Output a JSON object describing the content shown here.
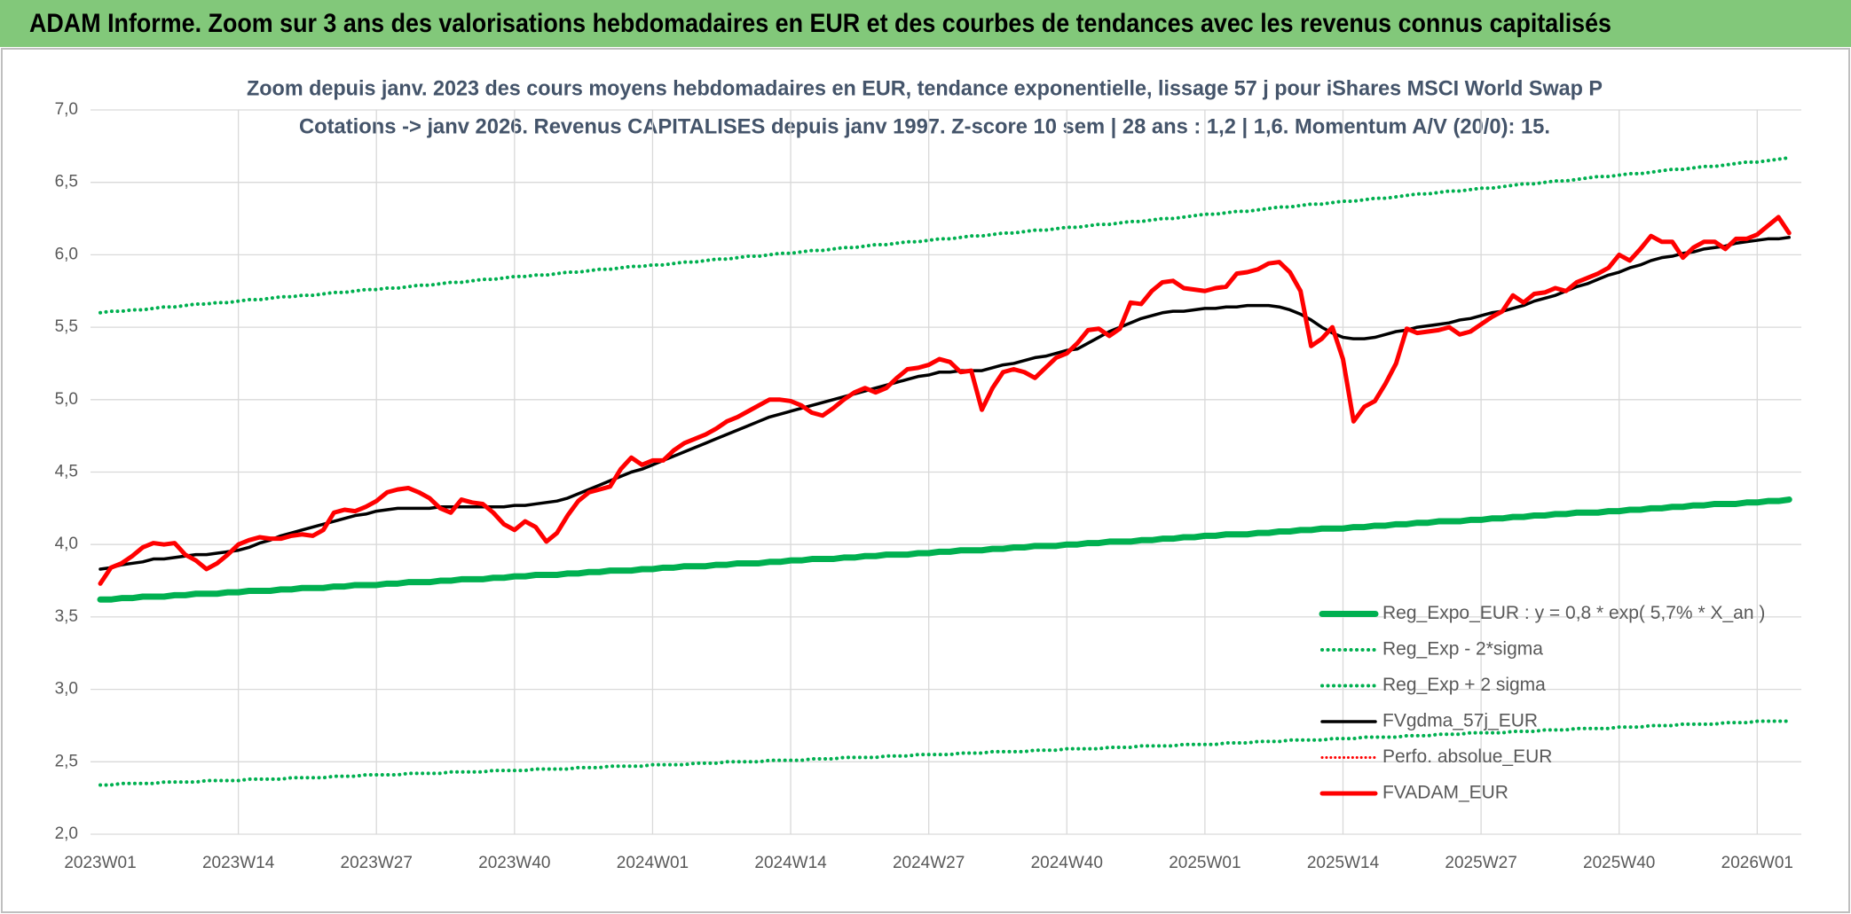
{
  "header": {
    "title": "ADAM Informe. Zoom sur 3 ans des valorisations hebdomadaires en EUR et des courbes de tendances avec les revenus connus capitalisés"
  },
  "chart_data": {
    "type": "line",
    "title": "Zoom depuis janv. 2023 des cours moyens hebdomadaires en EUR, tendance exponentielle, lissage 57 j pour iShares MSCI World Swap P",
    "subtitle": "Cotations -> janv 2026. Revenus CAPITALISES depuis janv 1997. Z-score 10 sem | 28 ans : 1,2 | 1,6. Momentum A/V (20/0): 15.",
    "categories": [
      "2023W01",
      null,
      null,
      null,
      null,
      null,
      null,
      null,
      null,
      null,
      null,
      null,
      null,
      "2023W14",
      null,
      null,
      null,
      null,
      null,
      null,
      null,
      null,
      null,
      null,
      null,
      null,
      "2023W27",
      null,
      null,
      null,
      null,
      null,
      null,
      null,
      null,
      null,
      null,
      null,
      null,
      "2023W40",
      null,
      null,
      null,
      null,
      null,
      null,
      null,
      null,
      null,
      null,
      null,
      null,
      "2024W01",
      null,
      null,
      null,
      null,
      null,
      null,
      null,
      null,
      null,
      null,
      null,
      null,
      "2024W14",
      null,
      null,
      null,
      null,
      null,
      null,
      null,
      null,
      null,
      null,
      null,
      null,
      "2024W27",
      null,
      null,
      null,
      null,
      null,
      null,
      null,
      null,
      null,
      null,
      null,
      null,
      "2024W40",
      null,
      null,
      null,
      null,
      null,
      null,
      null,
      null,
      null,
      null,
      null,
      null,
      "2025W01",
      null,
      null,
      null,
      null,
      null,
      null,
      null,
      null,
      null,
      null,
      null,
      null,
      "2025W14",
      null,
      null,
      null,
      null,
      null,
      null,
      null,
      null,
      null,
      null,
      null,
      null,
      "2025W27",
      null,
      null,
      null,
      null,
      null,
      null,
      null,
      null,
      null,
      null,
      null,
      null,
      "2025W40",
      null,
      null,
      null,
      null,
      null,
      null,
      null,
      null,
      null,
      null,
      null,
      null,
      "2026W01",
      null,
      null,
      null
    ],
    "ylim": [
      2,
      7
    ],
    "yticks": [
      {
        "value": 2,
        "label": "2,0"
      },
      {
        "value": 2.5,
        "label": "2,5"
      },
      {
        "value": 3,
        "label": "3,0"
      },
      {
        "value": 3.5,
        "label": "3,5"
      },
      {
        "value": 4,
        "label": "4,0"
      },
      {
        "value": 4.5,
        "label": "4,5"
      },
      {
        "value": 5,
        "label": "5,0"
      },
      {
        "value": 5.5,
        "label": "5,5"
      },
      {
        "value": 6,
        "label": "6,0"
      },
      {
        "value": 6.5,
        "label": "6,5"
      },
      {
        "value": 7,
        "label": "7,0"
      }
    ],
    "grid": true,
    "legend": "lower right",
    "series": [
      {
        "name": "Reg_Expo_EUR : y = 0,8 * exp( 5,7% * X_an )",
        "color": "#00b050",
        "dash": "solid",
        "width": 7,
        "values": [
          3.62,
          3.62,
          3.63,
          3.63,
          3.64,
          3.64,
          3.64,
          3.65,
          3.65,
          3.66,
          3.66,
          3.66,
          3.67,
          3.67,
          3.68,
          3.68,
          3.68,
          3.69,
          3.69,
          3.7,
          3.7,
          3.7,
          3.71,
          3.71,
          3.72,
          3.72,
          3.72,
          3.73,
          3.73,
          3.74,
          3.74,
          3.74,
          3.75,
          3.75,
          3.76,
          3.76,
          3.76,
          3.77,
          3.77,
          3.78,
          3.78,
          3.79,
          3.79,
          3.79,
          3.8,
          3.8,
          3.81,
          3.81,
          3.82,
          3.82,
          3.82,
          3.83,
          3.83,
          3.84,
          3.84,
          3.85,
          3.85,
          3.85,
          3.86,
          3.86,
          3.87,
          3.87,
          3.87,
          3.88,
          3.88,
          3.89,
          3.89,
          3.9,
          3.9,
          3.9,
          3.91,
          3.91,
          3.92,
          3.92,
          3.93,
          3.93,
          3.93,
          3.94,
          3.94,
          3.95,
          3.95,
          3.96,
          3.96,
          3.96,
          3.97,
          3.97,
          3.98,
          3.98,
          3.99,
          3.99,
          3.99,
          4.0,
          4.0,
          4.01,
          4.01,
          4.02,
          4.02,
          4.02,
          4.03,
          4.03,
          4.04,
          4.04,
          4.05,
          4.05,
          4.06,
          4.06,
          4.07,
          4.07,
          4.07,
          4.08,
          4.08,
          4.09,
          4.09,
          4.1,
          4.1,
          4.11,
          4.11,
          4.11,
          4.12,
          4.12,
          4.13,
          4.13,
          4.14,
          4.14,
          4.15,
          4.15,
          4.16,
          4.16,
          4.16,
          4.17,
          4.17,
          4.18,
          4.18,
          4.19,
          4.19,
          4.2,
          4.2,
          4.21,
          4.21,
          4.22,
          4.22,
          4.22,
          4.23,
          4.23,
          4.24,
          4.24,
          4.25,
          4.25,
          4.26,
          4.26,
          4.27,
          4.27,
          4.28,
          4.28,
          4.28,
          4.29,
          4.29,
          4.3,
          4.3,
          4.31
        ]
      },
      {
        "name": "Reg_Exp - 2*sigma",
        "color": "#00b050",
        "dash": "dotted",
        "width": 4,
        "values": [
          2.34,
          2.34,
          2.35,
          2.35,
          2.35,
          2.35,
          2.36,
          2.36,
          2.36,
          2.36,
          2.37,
          2.37,
          2.37,
          2.37,
          2.38,
          2.38,
          2.38,
          2.38,
          2.39,
          2.39,
          2.39,
          2.39,
          2.4,
          2.4,
          2.4,
          2.41,
          2.41,
          2.41,
          2.41,
          2.42,
          2.42,
          2.42,
          2.42,
          2.43,
          2.43,
          2.43,
          2.43,
          2.44,
          2.44,
          2.44,
          2.44,
          2.45,
          2.45,
          2.45,
          2.45,
          2.46,
          2.46,
          2.46,
          2.47,
          2.47,
          2.47,
          2.47,
          2.48,
          2.48,
          2.48,
          2.48,
          2.49,
          2.49,
          2.49,
          2.5,
          2.5,
          2.5,
          2.5,
          2.51,
          2.51,
          2.51,
          2.51,
          2.52,
          2.52,
          2.52,
          2.53,
          2.53,
          2.53,
          2.53,
          2.54,
          2.54,
          2.54,
          2.55,
          2.55,
          2.55,
          2.55,
          2.56,
          2.56,
          2.56,
          2.57,
          2.57,
          2.57,
          2.57,
          2.58,
          2.58,
          2.58,
          2.59,
          2.59,
          2.59,
          2.59,
          2.6,
          2.6,
          2.6,
          2.61,
          2.61,
          2.61,
          2.61,
          2.62,
          2.62,
          2.62,
          2.62,
          2.63,
          2.63,
          2.63,
          2.64,
          2.64,
          2.64,
          2.65,
          2.65,
          2.65,
          2.65,
          2.66,
          2.66,
          2.66,
          2.67,
          2.67,
          2.67,
          2.67,
          2.68,
          2.68,
          2.68,
          2.69,
          2.69,
          2.69,
          2.7,
          2.7,
          2.7,
          2.7,
          2.71,
          2.71,
          2.71,
          2.72,
          2.72,
          2.72,
          2.73,
          2.73,
          2.73,
          2.73,
          2.74,
          2.74,
          2.74,
          2.75,
          2.75,
          2.75,
          2.76,
          2.76,
          2.76,
          2.76,
          2.77,
          2.77,
          2.77,
          2.78,
          2.78,
          2.78,
          2.78
        ]
      },
      {
        "name": "Reg_Exp + 2 sigma",
        "color": "#00b050",
        "dash": "dotted",
        "width": 4,
        "values": [
          5.6,
          5.61,
          5.61,
          5.62,
          5.62,
          5.63,
          5.64,
          5.64,
          5.65,
          5.66,
          5.66,
          5.67,
          5.67,
          5.68,
          5.69,
          5.69,
          5.7,
          5.71,
          5.71,
          5.72,
          5.72,
          5.73,
          5.74,
          5.74,
          5.75,
          5.76,
          5.76,
          5.77,
          5.77,
          5.78,
          5.79,
          5.79,
          5.8,
          5.81,
          5.81,
          5.82,
          5.83,
          5.83,
          5.84,
          5.85,
          5.85,
          5.86,
          5.86,
          5.87,
          5.88,
          5.88,
          5.89,
          5.9,
          5.9,
          5.91,
          5.92,
          5.92,
          5.93,
          5.93,
          5.94,
          5.95,
          5.95,
          5.96,
          5.97,
          5.97,
          5.98,
          5.99,
          5.99,
          6.0,
          6.01,
          6.01,
          6.02,
          6.03,
          6.03,
          6.04,
          6.05,
          6.05,
          6.06,
          6.07,
          6.07,
          6.08,
          6.09,
          6.09,
          6.1,
          6.11,
          6.11,
          6.12,
          6.13,
          6.13,
          6.14,
          6.15,
          6.15,
          6.16,
          6.17,
          6.17,
          6.18,
          6.19,
          6.19,
          6.2,
          6.21,
          6.21,
          6.22,
          6.23,
          6.23,
          6.24,
          6.25,
          6.25,
          6.26,
          6.27,
          6.28,
          6.28,
          6.29,
          6.3,
          6.3,
          6.31,
          6.32,
          6.33,
          6.33,
          6.34,
          6.35,
          6.35,
          6.36,
          6.37,
          6.37,
          6.38,
          6.39,
          6.39,
          6.4,
          6.41,
          6.42,
          6.42,
          6.43,
          6.44,
          6.44,
          6.45,
          6.46,
          6.46,
          6.47,
          6.48,
          6.49,
          6.49,
          6.5,
          6.51,
          6.51,
          6.52,
          6.53,
          6.54,
          6.54,
          6.55,
          6.56,
          6.56,
          6.57,
          6.58,
          6.59,
          6.59,
          6.6,
          6.61,
          6.61,
          6.62,
          6.63,
          6.64,
          6.64,
          6.65,
          6.66,
          6.67
        ]
      },
      {
        "name": "FVgdma_57j_EUR",
        "color": "#000000",
        "dash": "solid",
        "width": 3.5,
        "values": [
          3.83,
          3.84,
          3.86,
          3.87,
          3.88,
          3.9,
          3.9,
          3.91,
          3.92,
          3.93,
          3.93,
          3.94,
          3.95,
          3.96,
          3.98,
          4.01,
          4.03,
          4.06,
          4.08,
          4.1,
          4.12,
          4.14,
          4.16,
          4.18,
          4.2,
          4.21,
          4.23,
          4.24,
          4.25,
          4.25,
          4.25,
          4.25,
          4.26,
          4.26,
          4.26,
          4.26,
          4.26,
          4.26,
          4.26,
          4.27,
          4.27,
          4.28,
          4.29,
          4.3,
          4.32,
          4.35,
          4.38,
          4.41,
          4.44,
          4.47,
          4.5,
          4.52,
          4.55,
          4.58,
          4.61,
          4.64,
          4.67,
          4.7,
          4.73,
          4.76,
          4.79,
          4.82,
          4.85,
          4.88,
          4.9,
          4.92,
          4.94,
          4.96,
          4.98,
          5.0,
          5.02,
          5.04,
          5.06,
          5.08,
          5.1,
          5.12,
          5.14,
          5.16,
          5.17,
          5.19,
          5.19,
          5.2,
          5.2,
          5.2,
          5.22,
          5.24,
          5.25,
          5.27,
          5.29,
          5.3,
          5.32,
          5.34,
          5.35,
          5.39,
          5.43,
          5.47,
          5.5,
          5.53,
          5.56,
          5.58,
          5.6,
          5.61,
          5.61,
          5.62,
          5.63,
          5.63,
          5.64,
          5.64,
          5.65,
          5.65,
          5.65,
          5.64,
          5.62,
          5.59,
          5.55,
          5.5,
          5.46,
          5.43,
          5.42,
          5.42,
          5.43,
          5.45,
          5.47,
          5.48,
          5.5,
          5.51,
          5.52,
          5.53,
          5.55,
          5.56,
          5.58,
          5.6,
          5.61,
          5.63,
          5.65,
          5.68,
          5.7,
          5.72,
          5.75,
          5.78,
          5.8,
          5.83,
          5.86,
          5.88,
          5.91,
          5.93,
          5.96,
          5.98,
          5.99,
          6.01,
          6.02,
          6.04,
          6.05,
          6.06,
          6.08,
          6.09,
          6.1,
          6.11,
          6.11,
          6.12
        ]
      },
      {
        "name": "Perfo. absolue_EUR",
        "color": "#ff0000",
        "dash": "dotted",
        "width": 3,
        "values": [
          null,
          null,
          null,
          null,
          null,
          null,
          null,
          null,
          null,
          null,
          null,
          null,
          null,
          null,
          null,
          null,
          null,
          null,
          null,
          null,
          null,
          null,
          null,
          null,
          null,
          null,
          null,
          null,
          null,
          null,
          null,
          null,
          null,
          null,
          null,
          null,
          null,
          null,
          null,
          null,
          null,
          null,
          null,
          null,
          null,
          null,
          null,
          null,
          null,
          null,
          null,
          null,
          null,
          null,
          null,
          null,
          null,
          null,
          null,
          null,
          null,
          null,
          null,
          null,
          null,
          null,
          null,
          null,
          null,
          null,
          null,
          null,
          null,
          null,
          null,
          null,
          null,
          null,
          null,
          null,
          null,
          null,
          null,
          null,
          null,
          null,
          null,
          null,
          null,
          null,
          null,
          null,
          null,
          null,
          null,
          null,
          null,
          null,
          null,
          null,
          null,
          null,
          null,
          null,
          null,
          null,
          null,
          null,
          null,
          null,
          null,
          null,
          null,
          null,
          null,
          null,
          null,
          null,
          null,
          null,
          null,
          null,
          null,
          null,
          null,
          null,
          null,
          null,
          null,
          null,
          null,
          null,
          null,
          null,
          null,
          null,
          null,
          null,
          null,
          null,
          null,
          null,
          null,
          null,
          null,
          null,
          null,
          null,
          null,
          null,
          null,
          null,
          null,
          null,
          null,
          null,
          null,
          null,
          null,
          null
        ]
      },
      {
        "name": "FVADAM_EUR",
        "color": "#ff0000",
        "dash": "solid",
        "width": 5,
        "values": [
          3.73,
          3.84,
          3.87,
          3.92,
          3.98,
          4.01,
          4.0,
          4.01,
          3.93,
          3.89,
          3.83,
          3.87,
          3.93,
          4.0,
          4.03,
          4.05,
          4.04,
          4.04,
          4.06,
          4.07,
          4.06,
          4.1,
          4.22,
          4.24,
          4.23,
          4.26,
          4.3,
          4.36,
          4.38,
          4.39,
          4.36,
          4.32,
          4.25,
          4.22,
          4.31,
          4.29,
          4.28,
          4.22,
          4.14,
          4.1,
          4.16,
          4.12,
          4.02,
          4.08,
          4.2,
          4.3,
          4.36,
          4.38,
          4.4,
          4.52,
          4.6,
          4.55,
          4.58,
          4.58,
          4.65,
          4.7,
          4.73,
          4.76,
          4.8,
          4.85,
          4.88,
          4.92,
          4.96,
          5.0,
          5.0,
          4.99,
          4.96,
          4.91,
          4.89,
          4.94,
          5.0,
          5.05,
          5.08,
          5.05,
          5.08,
          5.15,
          5.21,
          5.22,
          5.24,
          5.28,
          5.26,
          5.19,
          5.2,
          4.93,
          5.08,
          5.19,
          5.21,
          5.19,
          5.15,
          5.22,
          5.29,
          5.32,
          5.39,
          5.48,
          5.49,
          5.44,
          5.49,
          5.67,
          5.66,
          5.75,
          5.81,
          5.82,
          5.77,
          5.76,
          5.75,
          5.77,
          5.78,
          5.87,
          5.88,
          5.9,
          5.94,
          5.95,
          5.88,
          5.75,
          5.37,
          5.42,
          5.5,
          5.28,
          4.85,
          4.95,
          4.99,
          5.11,
          5.25,
          5.49,
          5.46,
          5.47,
          5.48,
          5.5,
          5.45,
          5.47,
          5.52,
          5.57,
          5.61,
          5.72,
          5.67,
          5.73,
          5.74,
          5.77,
          5.75,
          5.81,
          5.84,
          5.87,
          5.91,
          6.0,
          5.96,
          6.04,
          6.13,
          6.09,
          6.09,
          5.98,
          6.05,
          6.09,
          6.09,
          6.04,
          6.11,
          6.11,
          6.14,
          6.2,
          6.26,
          6.15
        ]
      }
    ]
  }
}
